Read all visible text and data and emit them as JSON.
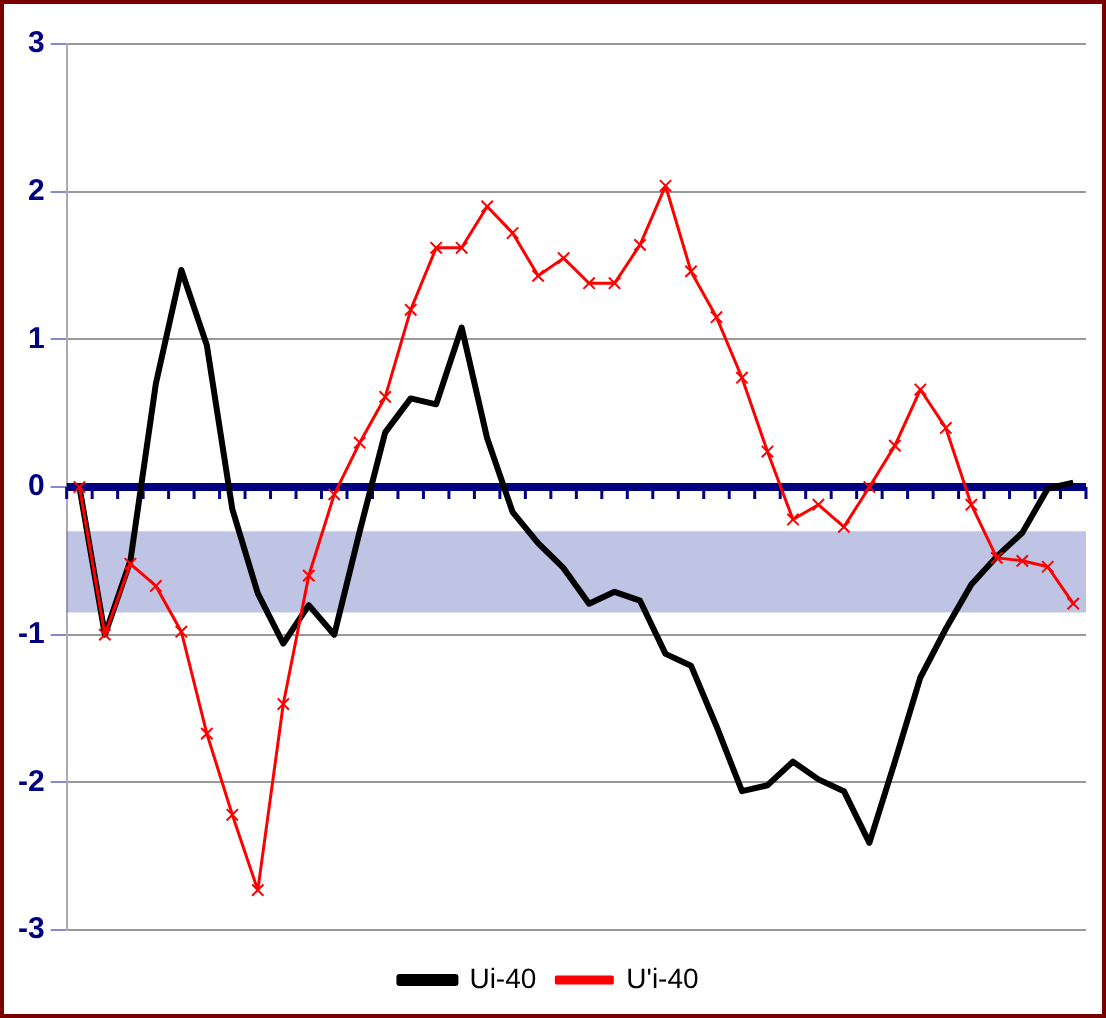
{
  "chart_data": {
    "type": "line",
    "categories": [
      null,
      null,
      null,
      null,
      null,
      null,
      null,
      null,
      null,
      null,
      null,
      null,
      null,
      null,
      null,
      null,
      null,
      null,
      null,
      null,
      null,
      null,
      null,
      null,
      null,
      null,
      null,
      null,
      null,
      null,
      null,
      null,
      null,
      null,
      null,
      null,
      null,
      null,
      null,
      null
    ],
    "series": [
      {
        "name": "Ui-40",
        "color": "#000000",
        "marker": "none",
        "values": [
          0,
          -1.0,
          -0.5,
          0.7,
          1.47,
          0.96,
          -0.15,
          -0.72,
          -1.06,
          -0.8,
          -1.0,
          -0.3,
          0.37,
          0.6,
          0.56,
          1.08,
          0.33,
          -0.17,
          -0.38,
          -0.55,
          -0.79,
          -0.71,
          -0.77,
          -1.13,
          -1.21,
          -1.62,
          -2.06,
          -2.02,
          -1.86,
          -1.98,
          -2.06,
          -2.41,
          -1.86,
          -1.29,
          -0.96,
          -0.66,
          -0.47,
          -0.31,
          -0.01,
          0.03
        ]
      },
      {
        "name": "U'i-40",
        "color": "#ff0000",
        "marker": "cross",
        "values": [
          0,
          -1.0,
          -0.52,
          -0.67,
          -0.98,
          -1.67,
          -2.22,
          -2.73,
          -1.47,
          -0.6,
          -0.05,
          0.3,
          0.61,
          1.2,
          1.62,
          1.62,
          1.9,
          1.72,
          1.43,
          1.55,
          1.38,
          1.38,
          1.64,
          2.04,
          1.46,
          1.15,
          0.74,
          0.24,
          -0.22,
          -0.12,
          -0.27,
          0.0,
          0.28,
          0.66,
          0.4,
          -0.12,
          -0.48,
          -0.5,
          -0.54,
          -0.79
        ]
      }
    ],
    "ylim": [
      -3,
      3
    ],
    "yticks": [
      -3,
      -2,
      -1,
      0,
      1,
      2,
      3
    ],
    "grid": "y",
    "tick_labels": "y",
    "legend": "bottom",
    "ref_lines": [
      {
        "axis": "y",
        "value": 0,
        "color": "#000080"
      }
    ],
    "bands": [
      {
        "axis": "y",
        "from": -0.3,
        "to": -0.85,
        "color": "#2a3caa"
      }
    ]
  }
}
